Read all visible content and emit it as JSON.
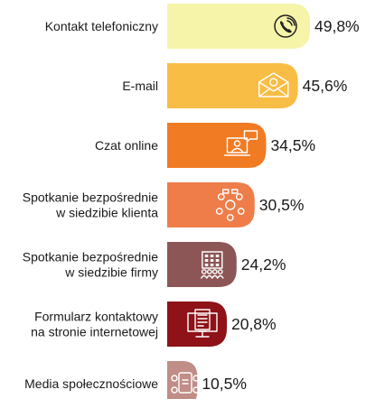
{
  "chart_data": {
    "type": "bar",
    "orientation": "horizontal",
    "categories": [
      [
        "Kontakt telefoniczny"
      ],
      [
        "E-mail"
      ],
      [
        "Czat online"
      ],
      [
        "Spotkanie bezpośrednie",
        "w siedzibie klienta"
      ],
      [
        "Spotkanie bezpośrednie",
        "w siedzibie firmy"
      ],
      [
        "Formularz kontaktowy",
        "na stronie internetowej"
      ],
      [
        "Media społecznościowe"
      ]
    ],
    "values": [
      49.8,
      45.6,
      34.5,
      30.5,
      24.2,
      20.8,
      10.5
    ],
    "value_labels": [
      "49,8%",
      "45,6%",
      "34,5%",
      "30,5%",
      "24,2%",
      "20,8%",
      "10,5%"
    ],
    "colors": [
      "#f6f4a9",
      "#f8bd45",
      "#f07b23",
      "#ee7d4a",
      "#8d5656",
      "#8e1217",
      "#c08d87"
    ],
    "icons": [
      "phone-icon",
      "envelope-icon",
      "chat-icon",
      "meeting-icon",
      "building-icon",
      "form-icon",
      "social-media-icon"
    ],
    "title": "",
    "xlabel": "",
    "ylabel": "",
    "xlim": [
      0,
      50
    ],
    "grid": false,
    "legend": "none"
  }
}
